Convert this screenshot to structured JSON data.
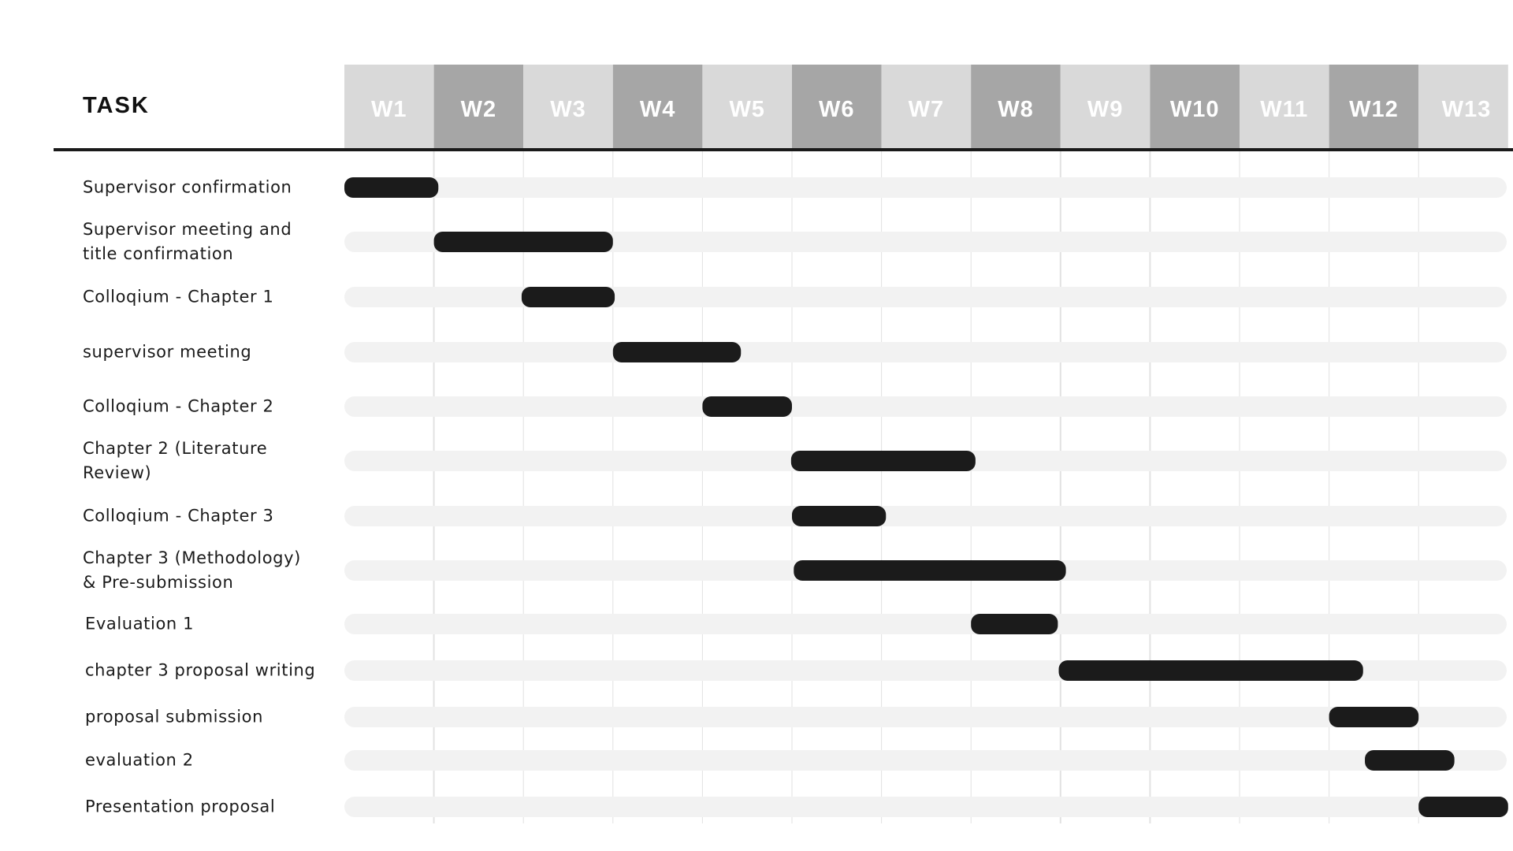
{
  "chart_data": {
    "type": "gantt",
    "task_header": "TASK",
    "weeks": [
      "W1",
      "W2",
      "W3",
      "W4",
      "W5",
      "W6",
      "W7",
      "W8",
      "W9",
      "W10",
      "W11",
      "W12",
      "W13"
    ],
    "tasks": [
      {
        "label": "Supervisor confirmation",
        "start": 0.0,
        "end": 1.05
      },
      {
        "label": "Supervisor meeting and title confirmation",
        "start": 1.0,
        "end": 3.0
      },
      {
        "label": "Colloqium - Chapter 1",
        "start": 1.98,
        "end": 3.02
      },
      {
        "label": "supervisor meeting",
        "start": 3.0,
        "end": 4.43
      },
      {
        "label": "Colloqium - Chapter 2",
        "start": 4.0,
        "end": 5.0
      },
      {
        "label": "Chapter 2 (Literature Review)",
        "start": 4.99,
        "end": 7.05
      },
      {
        "label": "Colloqium - Chapter 3",
        "start": 5.0,
        "end": 6.05
      },
      {
        "label": "Chapter 3 (Methodology) & Pre-submission",
        "start": 5.02,
        "end": 8.06
      },
      {
        "label": "Evaluation 1",
        "start": 7.0,
        "end": 7.97
      },
      {
        "label": "chapter 3 proposal writing",
        "start": 7.98,
        "end": 11.38
      },
      {
        "label": "proposal submission",
        "start": 11.0,
        "end": 12.0
      },
      {
        "label": "evaluation 2",
        "start": 11.4,
        "end": 12.4
      },
      {
        "label": "Presentation proposal",
        "start": 12.0,
        "end": 13.0
      }
    ],
    "colors": {
      "header_light": "#d9d9d9",
      "header_dark": "#a6a6a6",
      "header_text": "#ffffff",
      "bar": "#1b1b1b",
      "track": "#f2f2f2",
      "gridline": "#e2e2e2",
      "rule": "#1a1a1a",
      "label_text": "#1a1a1a"
    }
  }
}
